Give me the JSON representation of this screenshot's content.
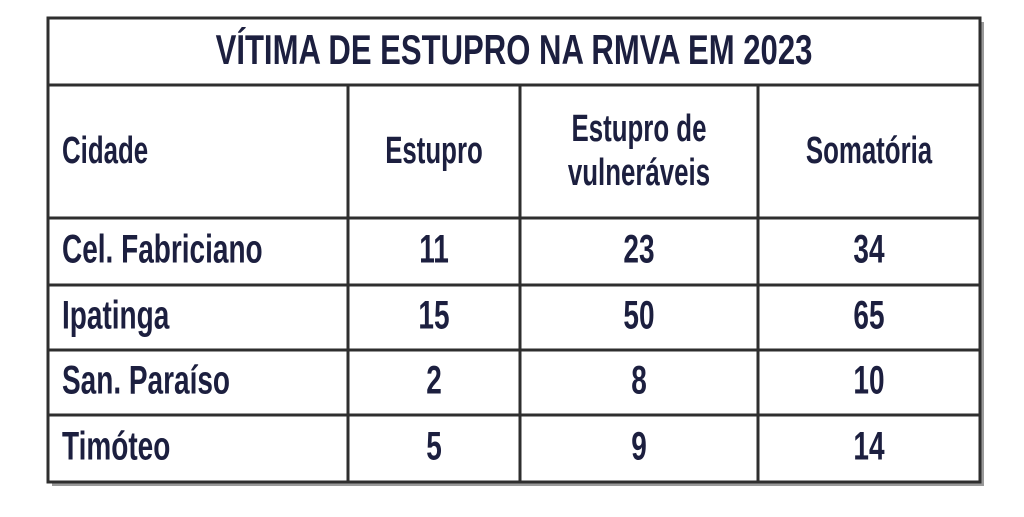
{
  "table": {
    "title": "VÍTIMA DE ESTUPRO NA RMVA EM 2023",
    "header": [
      "Cidade",
      "Estupro",
      [
        "Estupro de",
        "vulneráveis"
      ],
      "Somatória"
    ],
    "rows": [
      [
        "Cel. Fabriciano",
        11,
        23,
        34
      ],
      [
        "Ipatinga",
        15,
        50,
        65
      ],
      [
        "San. Paraíso",
        2,
        8,
        10
      ],
      [
        "Timóteo",
        5,
        9,
        14
      ]
    ]
  }
}
